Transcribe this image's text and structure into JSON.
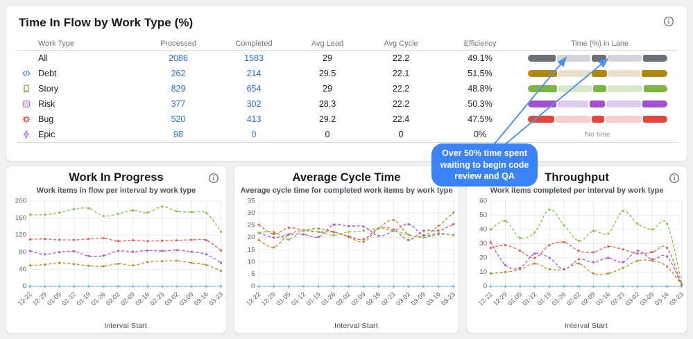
{
  "flow_table": {
    "title": "Time In Flow by Work Type (%)",
    "columns": {
      "work_type": "Work Type",
      "processed": "Processed",
      "completed": "Completed",
      "avg_lead": "Avg Lead",
      "avg_cycle": "Avg Cycle",
      "efficiency": "Efficiency",
      "time_in_lane": "Time (%) in Lane"
    },
    "no_time_label": "No time",
    "rows": [
      {
        "type": "All",
        "icon": "none",
        "icon_color": "",
        "processed": "2086",
        "completed": "1583",
        "avg_lead": "29",
        "avg_cycle": "22.2",
        "efficiency": "49.1%",
        "bar": {
          "dark": "#6c7076",
          "light": "#d5d5d9",
          "segments": [
            {
              "pct": 20.5,
              "tone": "dark"
            },
            {
              "pct": 25,
              "tone": "light"
            },
            {
              "pct": 11,
              "tone": "dark"
            },
            {
              "pct": 25.5,
              "tone": "light"
            },
            {
              "pct": 18,
              "tone": "dark"
            }
          ]
        }
      },
      {
        "type": "Debt",
        "icon": "code-icon",
        "icon_color": "#3b82f6",
        "processed": "262",
        "completed": "214",
        "avg_lead": "29.5",
        "avg_cycle": "22.1",
        "efficiency": "51.5%",
        "bar": {
          "dark": "#b18905",
          "light": "#e8dfc8",
          "segments": [
            {
              "pct": 22,
              "tone": "dark"
            },
            {
              "pct": 23.5,
              "tone": "light"
            },
            {
              "pct": 11.5,
              "tone": "dark"
            },
            {
              "pct": 24,
              "tone": "light"
            },
            {
              "pct": 19,
              "tone": "dark"
            }
          ]
        }
      },
      {
        "type": "Story",
        "icon": "bookmark-icon",
        "icon_color": "#6ba437",
        "processed": "829",
        "completed": "654",
        "avg_lead": "29",
        "avg_cycle": "22.2",
        "efficiency": "48.8%",
        "bar": {
          "dark": "#7cb53f",
          "light": "#dbe7ca",
          "segments": [
            {
              "pct": 21.5,
              "tone": "dark"
            },
            {
              "pct": 25,
              "tone": "light"
            },
            {
              "pct": 10,
              "tone": "dark"
            },
            {
              "pct": 26,
              "tone": "light"
            },
            {
              "pct": 17.5,
              "tone": "dark"
            }
          ]
        }
      },
      {
        "type": "Risk",
        "icon": "note-icon",
        "icon_color": "#c06ae0",
        "processed": "377",
        "completed": "302",
        "avg_lead": "28.3",
        "avg_cycle": "22.2",
        "efficiency": "50.3%",
        "bar": {
          "dark": "#a24fd1",
          "light": "#dfcbee",
          "segments": [
            {
              "pct": 21,
              "tone": "dark"
            },
            {
              "pct": 23,
              "tone": "light"
            },
            {
              "pct": 11.5,
              "tone": "dark"
            },
            {
              "pct": 26,
              "tone": "light"
            },
            {
              "pct": 18.5,
              "tone": "dark"
            }
          ]
        }
      },
      {
        "type": "Bug",
        "icon": "bug-icon",
        "icon_color": "#e8473c",
        "processed": "520",
        "completed": "413",
        "avg_lead": "29.2",
        "avg_cycle": "22.4",
        "efficiency": "47.5%",
        "bar": {
          "dark": "#e2463d",
          "light": "#f6cdc9",
          "segments": [
            {
              "pct": 19.5,
              "tone": "dark"
            },
            {
              "pct": 26,
              "tone": "light"
            },
            {
              "pct": 9.5,
              "tone": "dark"
            },
            {
              "pct": 27,
              "tone": "light"
            },
            {
              "pct": 18,
              "tone": "dark"
            }
          ]
        }
      },
      {
        "type": "Epic",
        "icon": "bolt-icon",
        "icon_color": "#b16ae8",
        "processed": "98",
        "completed": "0",
        "avg_lead": "0",
        "avg_cycle": "0",
        "efficiency": "0%",
        "bar": {
          "no_time": true
        }
      }
    ]
  },
  "annotation": {
    "text": "Over 50% time spent\nwaiting to begin code\nreview and QA",
    "bg": "#3b82f6",
    "arrow_color": "#4e95ea"
  },
  "chart_data": [
    {
      "type": "line",
      "title": "Work In Progress",
      "subtitle": "Work items in flow per interval by work type",
      "xlabel": "Interval Start",
      "categories": [
        "12-22",
        "12-29",
        "01-05",
        "01-12",
        "01-19",
        "01-26",
        "02-02",
        "02-09",
        "02-16",
        "02-23",
        "03-02",
        "03-09",
        "03-16",
        "03-23"
      ],
      "ylim": [
        0,
        200
      ],
      "ytick_step": 40,
      "grid": true,
      "legend": "none",
      "series": [
        {
          "name": "epic",
          "color": "#5bc2ea",
          "values": [
            0,
            0,
            0,
            0,
            0,
            0,
            0,
            0,
            0,
            0,
            0,
            0,
            0,
            0
          ]
        },
        {
          "name": "debt",
          "color": "#b3902e",
          "values": [
            49,
            51,
            55,
            52,
            48,
            47,
            53,
            49,
            57,
            59,
            60,
            55,
            50,
            36
          ]
        },
        {
          "name": "risk",
          "color": "#a55cc8",
          "values": [
            83,
            75,
            80,
            82,
            71,
            72,
            83,
            81,
            84,
            83,
            85,
            81,
            75,
            55
          ]
        },
        {
          "name": "bug",
          "color": "#e25a50",
          "values": [
            110,
            111,
            109,
            109,
            111,
            113,
            106,
            108,
            106,
            107,
            108,
            109,
            108,
            84
          ]
        },
        {
          "name": "story",
          "color": "#8bbf4b",
          "values": [
            168,
            168,
            173,
            181,
            183,
            165,
            170,
            178,
            173,
            187,
            176,
            174,
            172,
            128
          ]
        }
      ]
    },
    {
      "type": "line",
      "title": "Average Cycle Time",
      "subtitle": "Average cycle time for completed work items by work type",
      "xlabel": "Interval Start",
      "categories": [
        "12-22",
        "12-29",
        "01-05",
        "01-12",
        "01-19",
        "01-26",
        "02-02",
        "02-09",
        "02-16",
        "02-23",
        "03-02",
        "03-09",
        "03-16",
        "03-23"
      ],
      "ylim": [
        0,
        35
      ],
      "ytick_step": 5,
      "grid": true,
      "legend": "none",
      "series": [
        {
          "name": "epic",
          "color": "#5bc2ea",
          "values": [
            0,
            0,
            0,
            0,
            0,
            0,
            0,
            0,
            0,
            0,
            0,
            0,
            0,
            0
          ]
        },
        {
          "name": "debt",
          "color": "#b3902e",
          "values": [
            19,
            16,
            21.3,
            23,
            23.7,
            22.3,
            20.3,
            18.3,
            23.8,
            27.2,
            21.2,
            20.8,
            24.8,
            30.3
          ]
        },
        {
          "name": "risk",
          "color": "#a55cc8",
          "values": [
            22,
            20,
            21.2,
            21.3,
            20.3,
            25.3,
            24.7,
            24.5,
            20.7,
            22.7,
            25.5,
            21,
            21.7,
            21
          ]
        },
        {
          "name": "bug",
          "color": "#e25a50",
          "values": [
            25.3,
            21.5,
            24,
            23,
            22.3,
            22.3,
            20.5,
            19.3,
            23.8,
            23.3,
            19,
            22.8,
            22.9,
            25.5
          ]
        },
        {
          "name": "story",
          "color": "#8bbf4b",
          "values": [
            22,
            22.3,
            19.2,
            22.8,
            22.3,
            21,
            22.3,
            22.8,
            23.8,
            22.7,
            21.2,
            20,
            21.3,
            21
          ]
        }
      ]
    },
    {
      "type": "line",
      "title": "Throughput",
      "subtitle": "Work items completed per interval by work type",
      "xlabel": "Interval Start",
      "categories": [
        "12-22",
        "12-29",
        "01-05",
        "01-12",
        "01-19",
        "01-26",
        "02-02",
        "02-09",
        "02-16",
        "02-23",
        "03-02",
        "03-09",
        "03-16",
        "03-23"
      ],
      "ylim": [
        0,
        60
      ],
      "ytick_step": 10,
      "grid": true,
      "legend": "none",
      "series": [
        {
          "name": "epic",
          "color": "#5bc2ea",
          "values": [
            0,
            0,
            0,
            0,
            0,
            0,
            0,
            0,
            0,
            0,
            0,
            0,
            0,
            0
          ]
        },
        {
          "name": "debt",
          "color": "#b3902e",
          "values": [
            9,
            10,
            12,
            16,
            12,
            12,
            16,
            9,
            9,
            13,
            18,
            18,
            14,
            1
          ]
        },
        {
          "name": "risk",
          "color": "#a55cc8",
          "values": [
            31,
            15,
            13,
            23,
            20,
            12,
            19,
            17,
            20,
            17,
            25,
            19,
            21,
            1
          ]
        },
        {
          "name": "bug",
          "color": "#e25a50",
          "values": [
            27,
            29,
            25,
            20,
            29,
            31,
            25,
            24,
            28,
            26,
            23,
            24,
            27,
            1
          ]
        },
        {
          "name": "story",
          "color": "#8bbf4b",
          "values": [
            40,
            46,
            34,
            38,
            54,
            43,
            32,
            39,
            37,
            53,
            44,
            40,
            44,
            2
          ]
        }
      ]
    }
  ]
}
